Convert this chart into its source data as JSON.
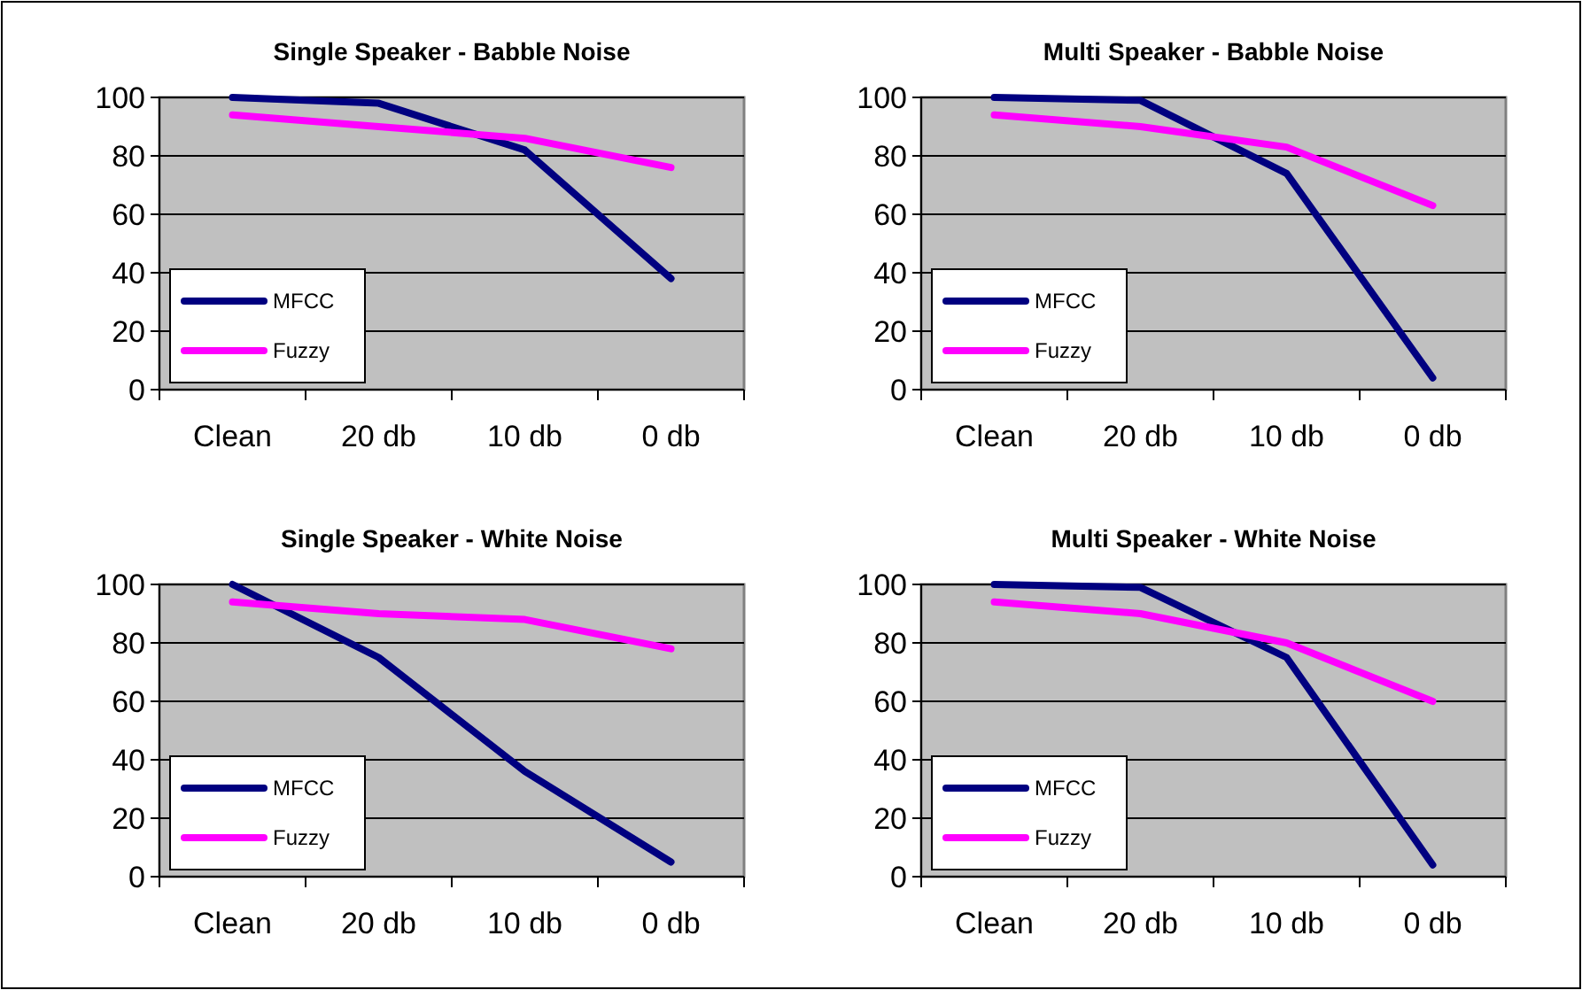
{
  "chart_data": [
    {
      "type": "line",
      "title": "Single Speaker - Babble Noise",
      "categories": [
        "Clean",
        "20 db",
        "10 db",
        "0 db"
      ],
      "series": [
        {
          "name": "MFCC",
          "color": "#000080",
          "values": [
            100,
            98,
            82,
            38
          ]
        },
        {
          "name": "Fuzzy",
          "color": "#ff00ff",
          "values": [
            94,
            90,
            86,
            76
          ]
        }
      ],
      "ylim": [
        0,
        100
      ],
      "yticks": [
        0,
        20,
        40,
        60,
        80,
        100
      ],
      "grid": "y",
      "legend": "bottom left",
      "marker": "none"
    },
    {
      "type": "line",
      "title": "Multi Speaker - Babble Noise",
      "categories": [
        "Clean",
        "20 db",
        "10 db",
        "0 db"
      ],
      "series": [
        {
          "name": "MFCC",
          "color": "#000080",
          "values": [
            100,
            99,
            74,
            4
          ]
        },
        {
          "name": "Fuzzy",
          "color": "#ff00ff",
          "values": [
            94,
            90,
            83,
            63
          ]
        }
      ],
      "ylim": [
        0,
        100
      ],
      "yticks": [
        0,
        20,
        40,
        60,
        80,
        100
      ],
      "grid": "y",
      "legend": "bottom left",
      "marker": "none"
    },
    {
      "type": "line",
      "title": "Single Speaker - White Noise",
      "categories": [
        "Clean",
        "20 db",
        "10 db",
        "0 db"
      ],
      "series": [
        {
          "name": "MFCC",
          "color": "#000080",
          "values": [
            100,
            75,
            36,
            5
          ]
        },
        {
          "name": "Fuzzy",
          "color": "#ff00ff",
          "values": [
            94,
            90,
            88,
            78
          ]
        }
      ],
      "ylim": [
        0,
        100
      ],
      "yticks": [
        0,
        20,
        40,
        60,
        80,
        100
      ],
      "grid": "y",
      "legend": "bottom left",
      "marker": "none"
    },
    {
      "type": "line",
      "title": "Multi Speaker - White Noise",
      "categories": [
        "Clean",
        "20 db",
        "10 db",
        "0 db"
      ],
      "series": [
        {
          "name": "MFCC",
          "color": "#000080",
          "values": [
            100,
            99,
            75,
            4
          ]
        },
        {
          "name": "Fuzzy",
          "color": "#ff00ff",
          "values": [
            94,
            90,
            80,
            60
          ]
        }
      ],
      "ylim": [
        0,
        100
      ],
      "yticks": [
        0,
        20,
        40,
        60,
        80,
        100
      ],
      "grid": "y",
      "legend": "bottom left",
      "marker": "none"
    }
  ]
}
